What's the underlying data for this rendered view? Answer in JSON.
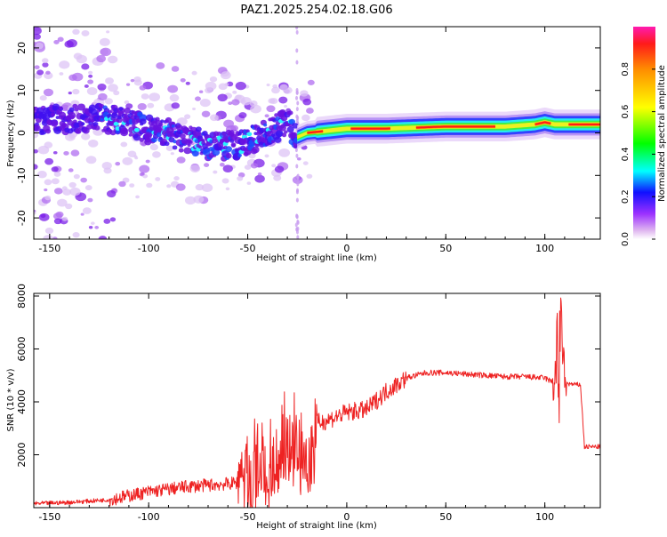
{
  "title": "PAZ1.2025.254.02.18.G06",
  "chart_data": [
    {
      "type": "heatmap",
      "xlabel": "Height of straight line (km)",
      "ylabel": "Frequency (Hz)",
      "xlim": [
        -158,
        128
      ],
      "ylim": [
        -25,
        25
      ],
      "xticks": [
        -150,
        -100,
        -50,
        0,
        50,
        100
      ],
      "yticks": [
        -20,
        -10,
        0,
        10,
        20
      ],
      "colorbar": {
        "label": "Normalized spectral amplitude",
        "range": [
          0,
          1
        ],
        "ticks": [
          "0.0",
          "0.2",
          "0.4",
          "0.6",
          "0.8"
        ]
      },
      "ridge": [
        {
          "x": -158,
          "f": 3
        },
        {
          "x": -120,
          "f": 3.5
        },
        {
          "x": -110,
          "f": 2
        },
        {
          "x": -90,
          "f": 0
        },
        {
          "x": -70,
          "f": -3
        },
        {
          "x": -55,
          "f": -3
        },
        {
          "x": -40,
          "f": 0
        },
        {
          "x": -30,
          "f": 3
        },
        {
          "x": -25,
          "f": -1
        },
        {
          "x": -20,
          "f": 0
        },
        {
          "x": 0,
          "f": 1
        },
        {
          "x": 20,
          "f": 1
        },
        {
          "x": 50,
          "f": 1.5
        },
        {
          "x": 80,
          "f": 1.5
        },
        {
          "x": 95,
          "f": 2
        },
        {
          "x": 100,
          "f": 2.5
        },
        {
          "x": 105,
          "f": 2
        },
        {
          "x": 110,
          "f": 2
        },
        {
          "x": 128,
          "f": 2
        }
      ]
    },
    {
      "type": "line",
      "xlabel": "Height of straight line (km)",
      "ylabel": "SNR (10 * v/v)",
      "xlim": [
        -158,
        128
      ],
      "ylim": [
        0,
        8100
      ],
      "xticks": [
        -150,
        -100,
        -50,
        0,
        50,
        100
      ],
      "yticks": [
        2000,
        4000,
        6000,
        8000
      ],
      "series": [
        {
          "name": "SNR",
          "color": "#ee2222",
          "x": [
            -158,
            -140,
            -120,
            -100,
            -80,
            -60,
            -50,
            -40,
            -30,
            -25,
            -20,
            -15,
            -10,
            0,
            10,
            20,
            30,
            40,
            50,
            60,
            70,
            80,
            90,
            100,
            105,
            107,
            108,
            110,
            115,
            118,
            120,
            128
          ],
          "y": [
            150,
            200,
            300,
            600,
            800,
            900,
            1000,
            1700,
            2600,
            2700,
            1800,
            3200,
            3300,
            3600,
            3700,
            4400,
            4900,
            5100,
            5100,
            5050,
            5000,
            4950,
            4950,
            4900,
            4700,
            6500,
            7500,
            4700,
            4650,
            4650,
            2300,
            2300
          ]
        }
      ]
    }
  ]
}
